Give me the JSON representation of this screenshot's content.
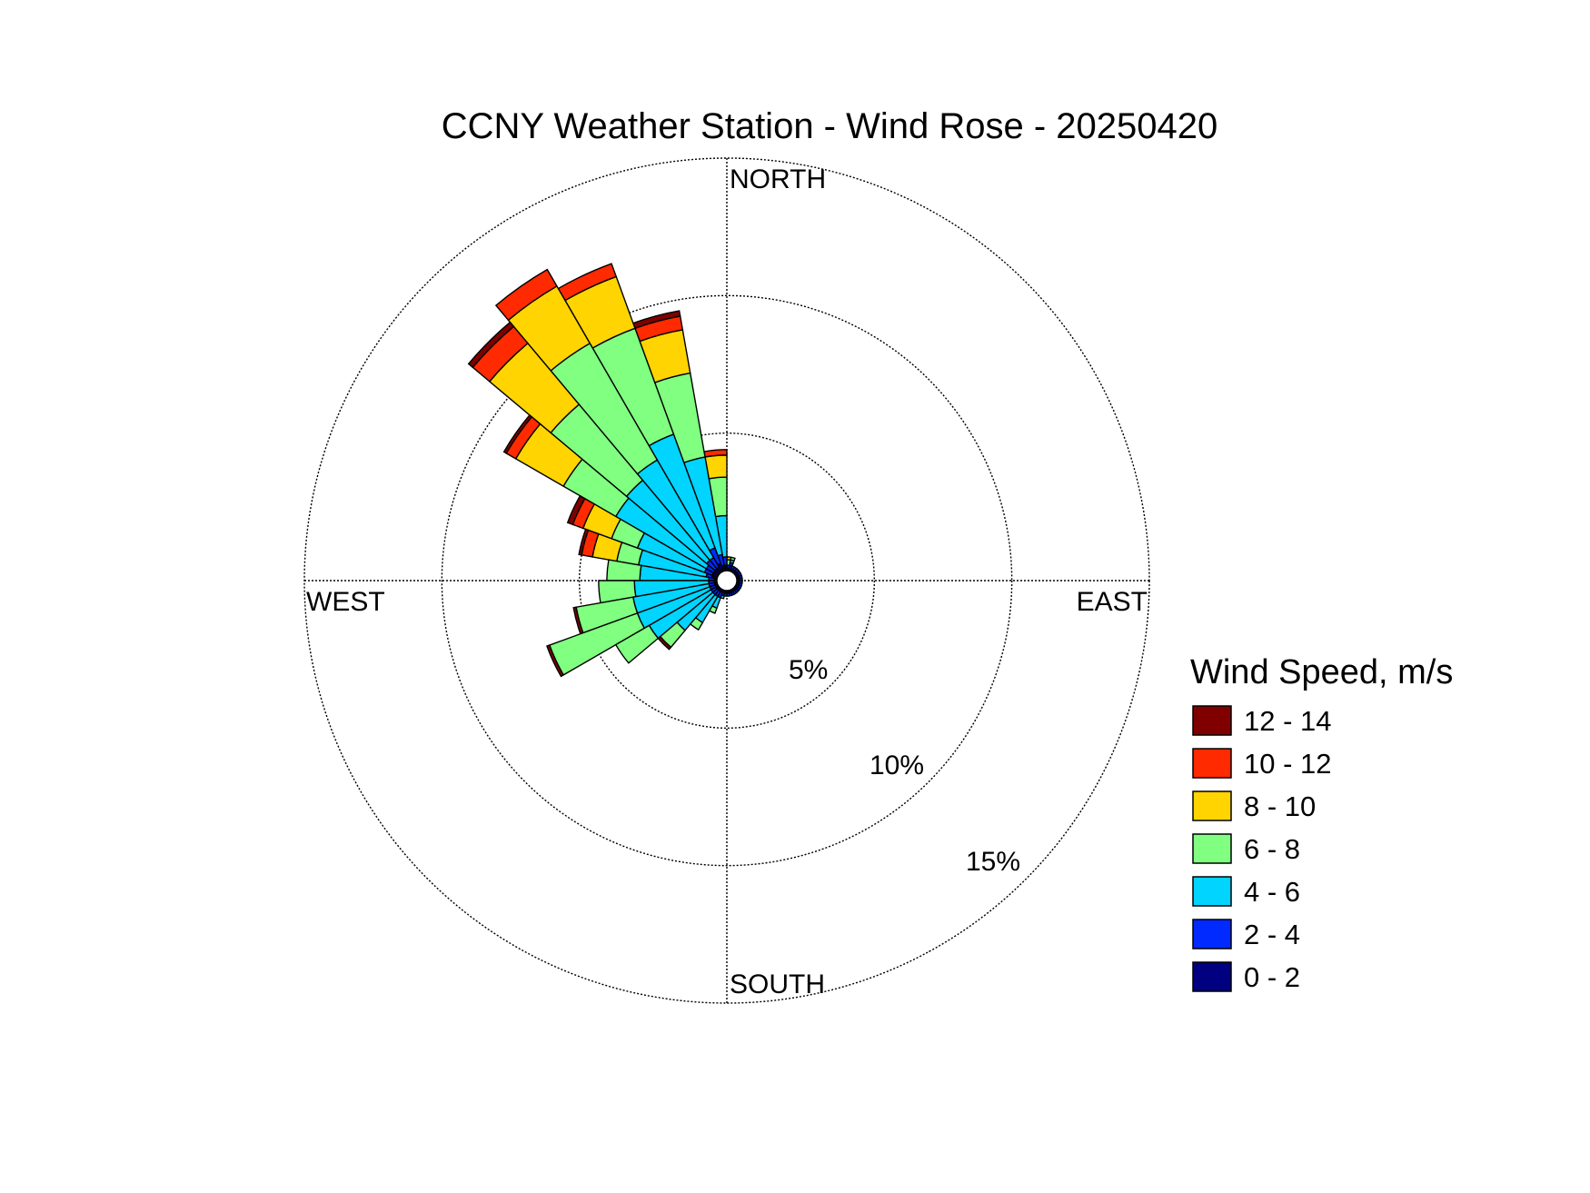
{
  "chart_data": {
    "type": "windrose",
    "title": "CCNY Weather Station - Wind Rose - 20250420",
    "directions": {
      "north": "NORTH",
      "east": "EAST",
      "south": "SOUTH",
      "west": "WEST"
    },
    "rings": [
      {
        "value": 5,
        "label": "5%"
      },
      {
        "value": 10,
        "label": "10%"
      },
      {
        "value": 15,
        "label": "15%"
      }
    ],
    "r_max_percent": 15,
    "sector_width_deg": 10,
    "calm_circle": true,
    "legend": {
      "title": "Wind Speed, m/s",
      "bins": [
        {
          "label": "12 - 14",
          "color": "#800000"
        },
        {
          "label": "10 - 12",
          "color": "#ff2a00"
        },
        {
          "label": "8 - 10",
          "color": "#ffd400"
        },
        {
          "label": "6 - 8",
          "color": "#80ff80"
        },
        {
          "label": "4 - 6",
          "color": "#00d4ff"
        },
        {
          "label": "2 - 4",
          "color": "#002aff"
        },
        {
          "label": "0 - 2",
          "color": "#000080"
        }
      ]
    },
    "bin_order": [
      "0 - 2",
      "2 - 4",
      "4 - 6",
      "6 - 8",
      "8 - 10",
      "10 - 12",
      "12 - 14"
    ],
    "sectors": [
      {
        "direction_deg": 5,
        "values": [
          0.1,
          0.1,
          0.0,
          0.2,
          0.1,
          0.0,
          0.0
        ]
      },
      {
        "direction_deg": 355,
        "values": [
          0.2,
          0.3,
          1.5,
          1.4,
          0.8,
          0.2,
          0.0
        ]
      },
      {
        "direction_deg": 345,
        "values": [
          0.2,
          0.4,
          3.6,
          3.1,
          1.6,
          0.5,
          0.2
        ]
      },
      {
        "direction_deg": 335,
        "values": [
          0.3,
          0.6,
          4.4,
          4.1,
          2.0,
          0.5,
          0.0
        ]
      },
      {
        "direction_deg": 325,
        "values": [
          0.2,
          0.4,
          4.1,
          4.9,
          2.4,
          0.7,
          0.0
        ]
      },
      {
        "direction_deg": 315,
        "values": [
          0.2,
          0.4,
          3.8,
          3.6,
          2.9,
          0.8,
          0.2
        ]
      },
      {
        "direction_deg": 305,
        "values": [
          0.2,
          0.3,
          3.8,
          2.2,
          2.0,
          0.4,
          0.1
        ]
      },
      {
        "direction_deg": 295,
        "values": [
          0.2,
          0.3,
          2.6,
          1.0,
          1.1,
          0.4,
          0.2
        ]
      },
      {
        "direction_deg": 285,
        "values": [
          0.2,
          0.2,
          2.5,
          0.8,
          0.9,
          0.4,
          0.1
        ]
      },
      {
        "direction_deg": 275,
        "values": [
          0.1,
          0.2,
          2.5,
          1.2,
          0.0,
          0.0,
          0.0
        ]
      },
      {
        "direction_deg": 265,
        "values": [
          0.1,
          0.2,
          2.7,
          1.3,
          0.0,
          0.0,
          0.0
        ]
      },
      {
        "direction_deg": 255,
        "values": [
          0.1,
          0.2,
          2.8,
          2.1,
          0.0,
          0.0,
          0.1
        ]
      },
      {
        "direction_deg": 245,
        "values": [
          0.1,
          0.2,
          2.8,
          3.4,
          0.0,
          0.0,
          0.1
        ]
      },
      {
        "direction_deg": 235,
        "values": [
          0.1,
          0.2,
          2.6,
          1.4,
          0.0,
          0.0,
          0.0
        ]
      },
      {
        "direction_deg": 225,
        "values": [
          0.1,
          0.2,
          1.7,
          0.8,
          0.0,
          0.0,
          0.1
        ]
      },
      {
        "direction_deg": 215,
        "values": [
          0.1,
          0.2,
          1.1,
          0.3,
          0.0,
          0.0,
          0.0
        ]
      },
      {
        "direction_deg": 205,
        "values": [
          0.1,
          0.2,
          0.4,
          0.2,
          0.0,
          0.0,
          0.0
        ]
      },
      {
        "direction_deg": 195,
        "values": [
          0.1,
          0.1,
          0.1,
          0.0,
          0.0,
          0.0,
          0.0
        ]
      },
      {
        "direction_deg": 185,
        "values": [
          0.1,
          0.1,
          0.0,
          0.0,
          0.0,
          0.0,
          0.0
        ]
      },
      {
        "direction_deg": 175,
        "values": [
          0.1,
          0.1,
          0.0,
          0.0,
          0.0,
          0.0,
          0.0
        ]
      },
      {
        "direction_deg": 165,
        "values": [
          0.1,
          0.1,
          0.0,
          0.0,
          0.0,
          0.0,
          0.0
        ]
      },
      {
        "direction_deg": 155,
        "values": [
          0.1,
          0.1,
          0.0,
          0.0,
          0.0,
          0.0,
          0.0
        ]
      },
      {
        "direction_deg": 145,
        "values": [
          0.1,
          0.1,
          0.0,
          0.0,
          0.0,
          0.0,
          0.0
        ]
      },
      {
        "direction_deg": 135,
        "values": [
          0.1,
          0.1,
          0.0,
          0.0,
          0.0,
          0.0,
          0.0
        ]
      },
      {
        "direction_deg": 125,
        "values": [
          0.1,
          0.1,
          0.0,
          0.0,
          0.0,
          0.0,
          0.0
        ]
      },
      {
        "direction_deg": 115,
        "values": [
          0.1,
          0.1,
          0.0,
          0.0,
          0.0,
          0.0,
          0.0
        ]
      },
      {
        "direction_deg": 105,
        "values": [
          0.1,
          0.1,
          0.0,
          0.0,
          0.0,
          0.0,
          0.0
        ]
      },
      {
        "direction_deg": 95,
        "values": [
          0.1,
          0.1,
          0.0,
          0.0,
          0.0,
          0.0,
          0.0
        ]
      },
      {
        "direction_deg": 85,
        "values": [
          0.1,
          0.1,
          0.0,
          0.0,
          0.0,
          0.0,
          0.0
        ]
      },
      {
        "direction_deg": 75,
        "values": [
          0.1,
          0.1,
          0.0,
          0.0,
          0.0,
          0.0,
          0.0
        ]
      },
      {
        "direction_deg": 65,
        "values": [
          0.1,
          0.1,
          0.0,
          0.0,
          0.0,
          0.0,
          0.0
        ]
      },
      {
        "direction_deg": 55,
        "values": [
          0.1,
          0.1,
          0.0,
          0.0,
          0.0,
          0.0,
          0.0
        ]
      },
      {
        "direction_deg": 45,
        "values": [
          0.1,
          0.1,
          0.0,
          0.0,
          0.0,
          0.0,
          0.0
        ]
      },
      {
        "direction_deg": 35,
        "values": [
          0.1,
          0.1,
          0.0,
          0.0,
          0.0,
          0.0,
          0.0
        ]
      },
      {
        "direction_deg": 25,
        "values": [
          0.1,
          0.1,
          0.0,
          0.0,
          0.0,
          0.0,
          0.0
        ]
      },
      {
        "direction_deg": 15,
        "values": [
          0.2,
          0.1,
          0.1,
          0.1,
          0.0,
          0.0,
          0.0
        ]
      }
    ]
  }
}
